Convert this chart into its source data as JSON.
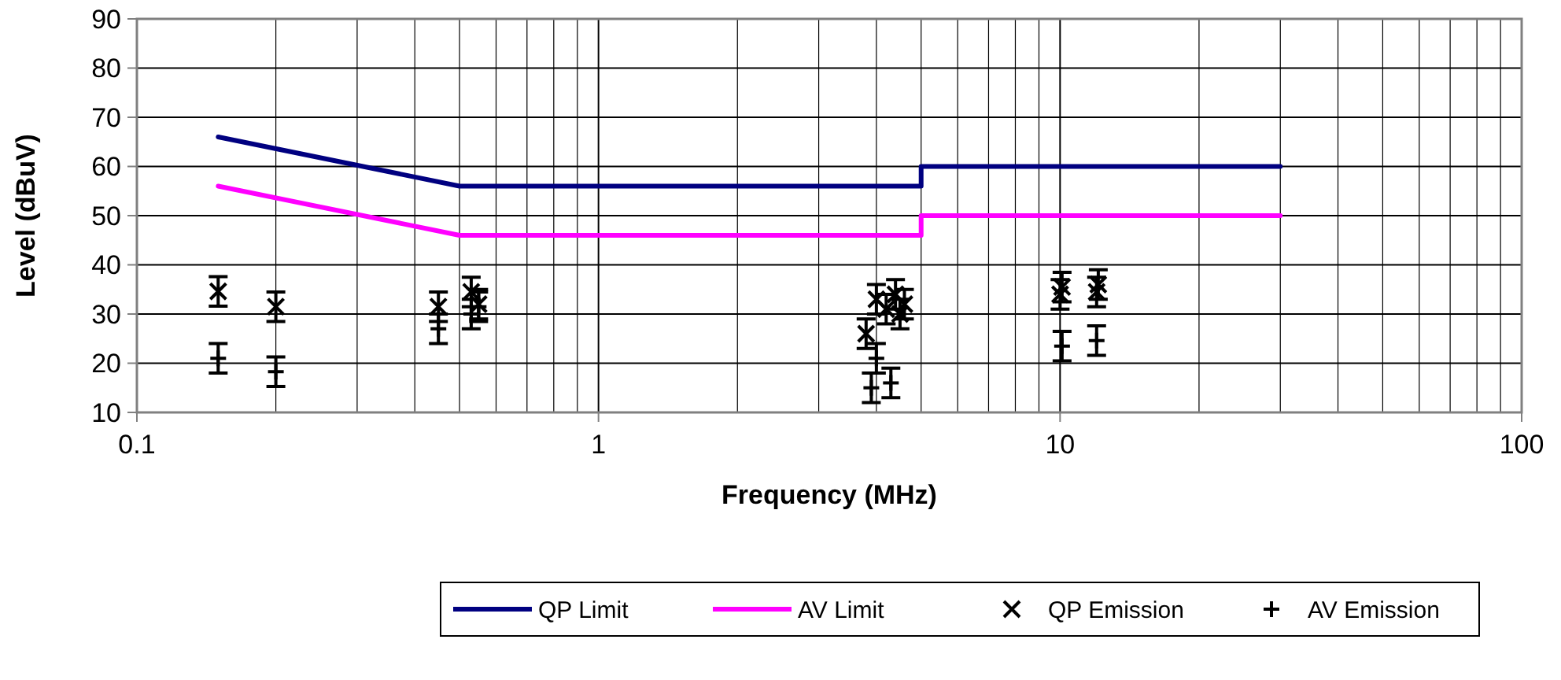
{
  "chart_data": {
    "type": "scatter",
    "xlabel": "Frequency (MHz)",
    "ylabel": "Level (dBuV)",
    "log": "x",
    "grid": true,
    "legend": "bottom",
    "xlim": [
      0.1,
      100
    ],
    "ylim": [
      10,
      90
    ],
    "xticks": [
      0.1,
      {
        "value": 0.2,
        "label": null
      },
      {
        "value": 0.3,
        "label": null
      },
      {
        "value": 0.4,
        "label": null
      },
      {
        "value": 0.5,
        "label": null
      },
      {
        "value": 0.6,
        "label": null
      },
      {
        "value": 0.7,
        "label": null
      },
      {
        "value": 0.8,
        "label": null
      },
      {
        "value": 0.9,
        "label": null
      },
      1,
      {
        "value": 2,
        "label": null
      },
      {
        "value": 3,
        "label": null
      },
      {
        "value": 4,
        "label": null
      },
      {
        "value": 5,
        "label": null
      },
      {
        "value": 6,
        "label": null
      },
      {
        "value": 7,
        "label": null
      },
      {
        "value": 8,
        "label": null
      },
      {
        "value": 9,
        "label": null
      },
      10,
      {
        "value": 20,
        "label": null
      },
      {
        "value": 30,
        "label": null
      },
      {
        "value": 40,
        "label": null
      },
      {
        "value": 50,
        "label": null
      },
      {
        "value": 60,
        "label": null
      },
      {
        "value": 70,
        "label": null
      },
      {
        "value": 80,
        "label": null
      },
      {
        "value": 90,
        "label": null
      },
      100
    ],
    "yticks": [
      10,
      20,
      30,
      40,
      50,
      60,
      70,
      80,
      90
    ],
    "series": [
      {
        "name": "QP Limit",
        "type": "line",
        "color": "#000080",
        "marker": "none",
        "line_style": "solid",
        "x": [
          0.15,
          0.5,
          5,
          5,
          30
        ],
        "values": [
          66,
          56,
          56,
          60,
          60
        ]
      },
      {
        "name": "AV Limit",
        "type": "line",
        "color": "#ff00ff",
        "marker": "none",
        "line_style": "solid",
        "x": [
          0.15,
          0.5,
          5,
          5,
          30
        ],
        "values": [
          56,
          46,
          46,
          50,
          50
        ]
      },
      {
        "name": "QP Emission",
        "type": "scatter",
        "color": "#000000",
        "marker": "cross",
        "x": [
          0.15,
          0.2,
          0.45,
          0.53,
          0.55,
          3.8,
          4.0,
          4.2,
          4.4,
          4.5,
          4.6,
          10,
          10.1,
          12,
          12.1
        ],
        "values": [
          34.6,
          31.5,
          31.5,
          34.5,
          32,
          26,
          33,
          31,
          34,
          30,
          32,
          34,
          35.5,
          34.5,
          36
        ],
        "errors": [
          3,
          3,
          3,
          3,
          3,
          3,
          3,
          3,
          3,
          3,
          3,
          3,
          3,
          3,
          3
        ]
      },
      {
        "name": "AV Emission",
        "type": "scatter",
        "color": "#000000",
        "marker": "plus",
        "x": [
          0.15,
          0.2,
          0.45,
          0.53,
          0.55,
          3.9,
          4.0,
          4.3,
          10.1,
          12
        ],
        "values": [
          21,
          18.3,
          27,
          30,
          31.5,
          15,
          21,
          16,
          23.5,
          24.6
        ],
        "errors": [
          3,
          3,
          3,
          3,
          3,
          3,
          3,
          3,
          3,
          3
        ]
      }
    ]
  }
}
